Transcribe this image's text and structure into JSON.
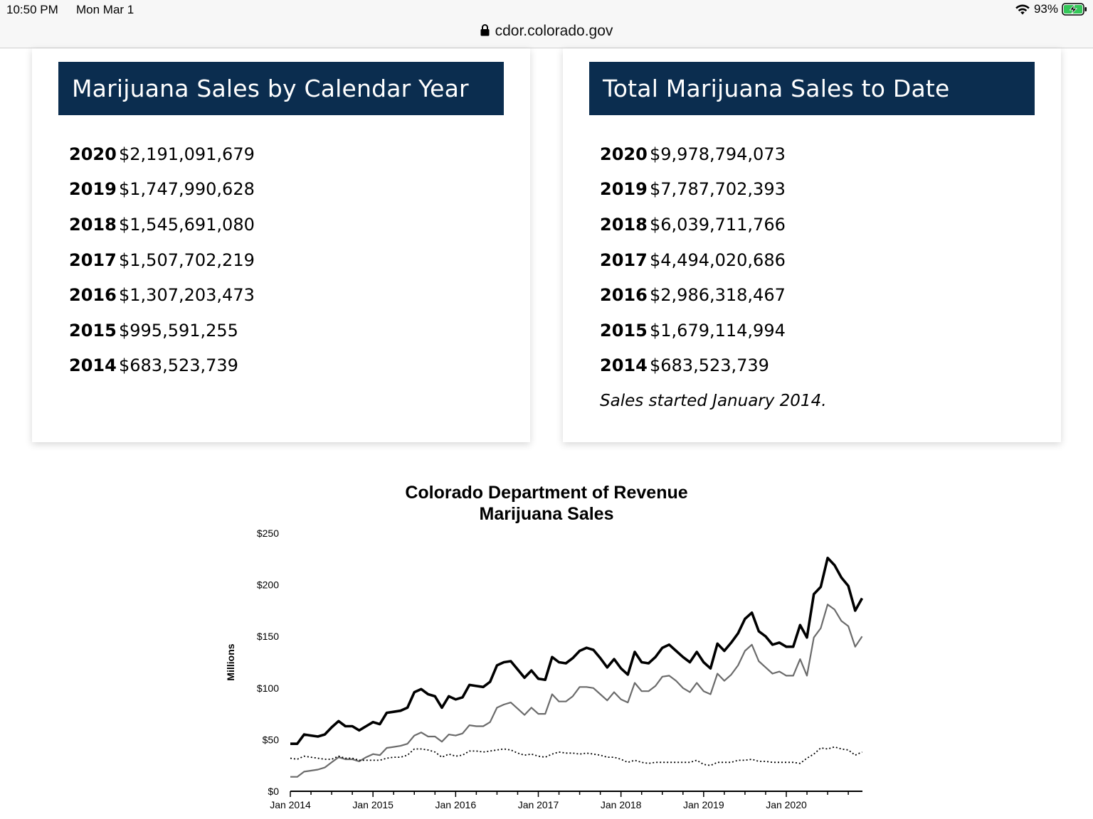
{
  "status": {
    "time": "10:50 PM",
    "date": "Mon Mar 1",
    "battery": "93%"
  },
  "address_bar": {
    "url": "cdor.colorado.gov"
  },
  "left_card": {
    "title": "Marijuana Sales by Calendar Year",
    "rows": [
      {
        "year": "2020",
        "amount": "$2,191,091,679"
      },
      {
        "year": "2019",
        "amount": "$1,747,990,628"
      },
      {
        "year": "2018",
        "amount": "$1,545,691,080"
      },
      {
        "year": "2017",
        "amount": "$1,507,702,219"
      },
      {
        "year": "2016",
        "amount": "$1,307,203,473"
      },
      {
        "year": "2015",
        "amount": "$995,591,255"
      },
      {
        "year": "2014",
        "amount": "$683,523,739"
      }
    ]
  },
  "right_card": {
    "title": "Total Marijuana Sales to Date",
    "rows": [
      {
        "year": "2020",
        "amount": "$9,978,794,073"
      },
      {
        "year": "2019",
        "amount": "$7,787,702,393"
      },
      {
        "year": "2018",
        "amount": "$6,039,711,766"
      },
      {
        "year": "2017",
        "amount": "$4,494,020,686"
      },
      {
        "year": "2016",
        "amount": "$2,986,318,467"
      },
      {
        "year": "2015",
        "amount": "$1,679,114,994"
      },
      {
        "year": "2014",
        "amount": "$683,523,739"
      }
    ],
    "note": "Sales started January 2014."
  },
  "chart_data": {
    "type": "line",
    "title": "Colorado Department of Revenue",
    "subtitle": "Marijuana Sales",
    "ylabel": "Millions",
    "xlabel": "",
    "ylim": [
      0,
      250
    ],
    "yticks": [
      "$0",
      "$50",
      "$100",
      "$150",
      "$200",
      "$250"
    ],
    "ytick_values": [
      0,
      50,
      100,
      150,
      200,
      250
    ],
    "xtick_labels": [
      "Jan 2014",
      "Jan 2015",
      "Jan 2016",
      "Jan 2017",
      "Jan 2018",
      "Jan 2019",
      "Jan 2020"
    ],
    "x_start": "Jan 2014",
    "x_end": "Dec 2020",
    "grid": false,
    "legend": "none",
    "series": [
      {
        "style": "solid-bold",
        "color": "#000000",
        "values": [
          46,
          46,
          55,
          54,
          53,
          55,
          62,
          68,
          63,
          63,
          59,
          63,
          67,
          65,
          76,
          77,
          78,
          81,
          96,
          99,
          94,
          92,
          81,
          92,
          89,
          91,
          103,
          102,
          101,
          106,
          122,
          125,
          126,
          118,
          110,
          117,
          109,
          108,
          130,
          125,
          124,
          129,
          136,
          139,
          137,
          129,
          120,
          128,
          119,
          113,
          135,
          125,
          124,
          130,
          139,
          142,
          136,
          130,
          125,
          135,
          125,
          119,
          143,
          136,
          144,
          153,
          167,
          173,
          155,
          150,
          142,
          144,
          140,
          140,
          161,
          149,
          191,
          198,
          226,
          219,
          207,
          199,
          175,
          187
        ]
      },
      {
        "style": "solid-gray",
        "color": "#666666",
        "values": [
          14,
          14,
          19,
          20,
          21,
          23,
          28,
          33,
          31,
          31,
          29,
          33,
          36,
          35,
          42,
          43,
          44,
          46,
          54,
          57,
          53,
          53,
          48,
          55,
          54,
          56,
          64,
          63,
          63,
          67,
          81,
          84,
          86,
          80,
          74,
          81,
          75,
          75,
          94,
          87,
          87,
          92,
          101,
          101,
          100,
          94,
          88,
          96,
          89,
          86,
          105,
          97,
          97,
          102,
          111,
          112,
          107,
          100,
          96,
          105,
          97,
          94,
          114,
          107,
          113,
          122,
          136,
          142,
          126,
          120,
          114,
          116,
          112,
          112,
          128,
          112,
          149,
          158,
          181,
          176,
          165,
          160,
          140,
          150
        ]
      },
      {
        "style": "dotted",
        "color": "#000000",
        "values": [
          32,
          31,
          34,
          33,
          32,
          31,
          31,
          34,
          32,
          32,
          30,
          30,
          30,
          30,
          32,
          33,
          33,
          35,
          41,
          41,
          40,
          38,
          33,
          36,
          34,
          35,
          39,
          39,
          38,
          39,
          40,
          41,
          40,
          37,
          35,
          36,
          34,
          33,
          36,
          38,
          37,
          37,
          36,
          37,
          36,
          35,
          33,
          33,
          31,
          28,
          30,
          28,
          27,
          28,
          28,
          28,
          28,
          28,
          28,
          30,
          26,
          25,
          28,
          28,
          28,
          30,
          30,
          31,
          29,
          29,
          28,
          28,
          28,
          28,
          27,
          32,
          36,
          42,
          41,
          43,
          41,
          40,
          35,
          38
        ]
      }
    ]
  }
}
